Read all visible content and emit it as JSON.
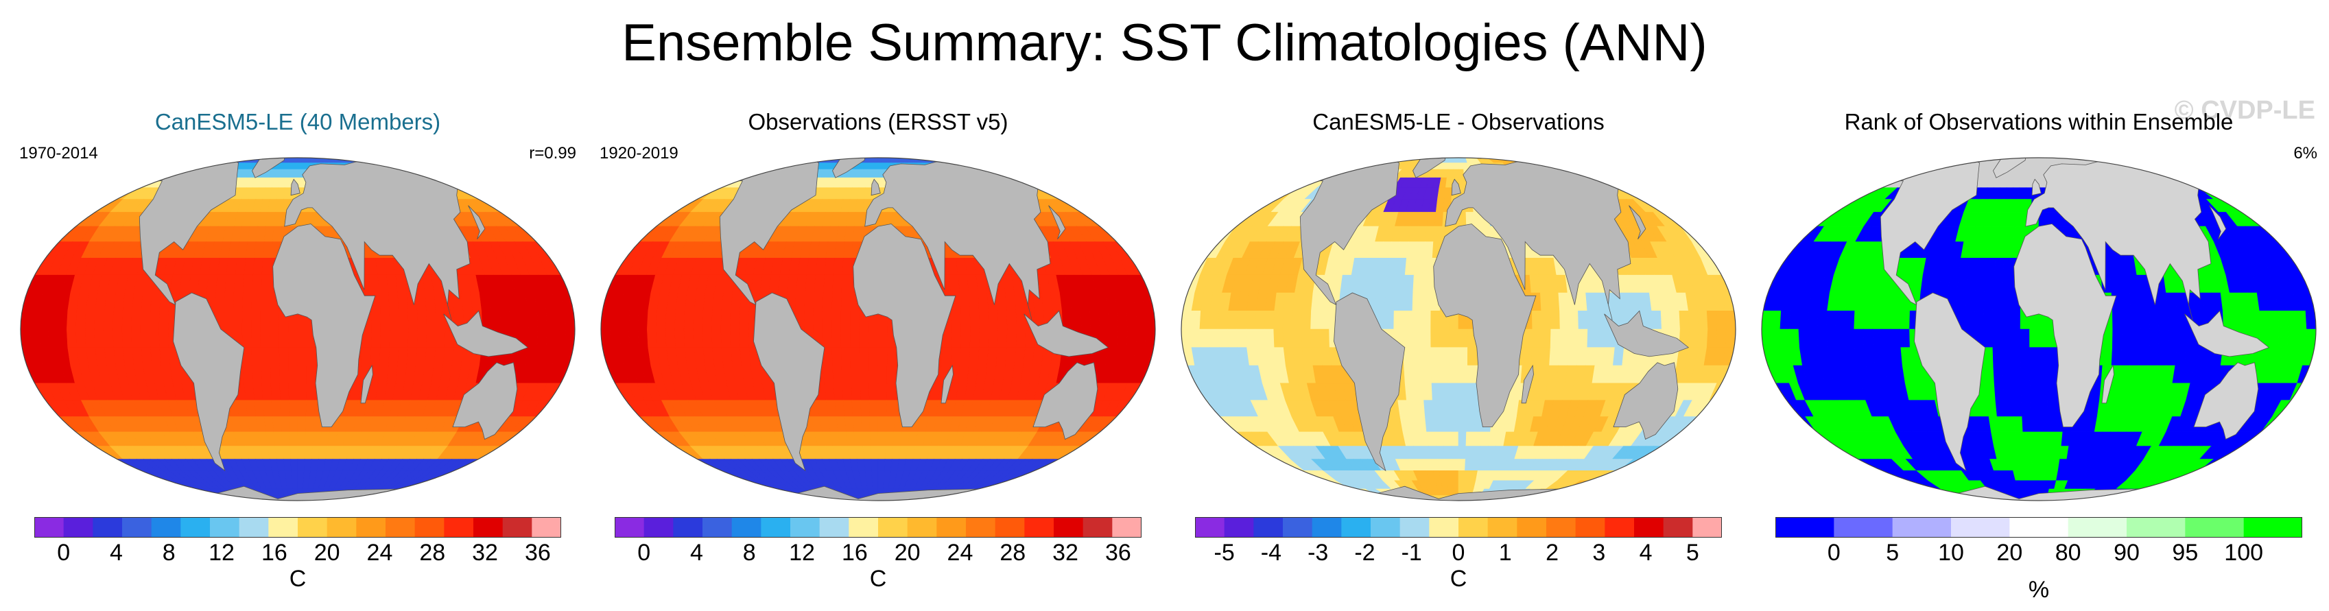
{
  "title": "Ensemble Summary: SST Climatologies (ANN)",
  "watermark": "© CVDP-LE",
  "panels": [
    {
      "title": "CanESM5-LE (40 Members)",
      "left": "1970-2014",
      "right": "r=0.99",
      "field": "sst",
      "colorbar": {
        "colors": [
          "#8a2be2",
          "#5a1fdc",
          "#2b3adc",
          "#3a62e0",
          "#1f87e8",
          "#2ab0f0",
          "#69c6f0",
          "#a8daf0",
          "#fff2a0",
          "#ffd24a",
          "#ffb92e",
          "#ff9a1a",
          "#ff7a12",
          "#ff5a0a",
          "#ff2a0a",
          "#e00000",
          "#cc2c2c",
          "#ffa8a8"
        ],
        "ticks": [
          "0",
          "4",
          "8",
          "12",
          "16",
          "20",
          "24",
          "28",
          "32",
          "36"
        ],
        "unit": "C"
      }
    },
    {
      "title": "Observations (ERSST v5)",
      "left": "1920-2019",
      "right": "",
      "field": "sst",
      "colorbar": {
        "colors": [
          "#8a2be2",
          "#5a1fdc",
          "#2b3adc",
          "#3a62e0",
          "#1f87e8",
          "#2ab0f0",
          "#69c6f0",
          "#a8daf0",
          "#fff2a0",
          "#ffd24a",
          "#ffb92e",
          "#ff9a1a",
          "#ff7a12",
          "#ff5a0a",
          "#ff2a0a",
          "#e00000",
          "#cc2c2c",
          "#ffa8a8"
        ],
        "ticks": [
          "0",
          "4",
          "8",
          "12",
          "16",
          "20",
          "24",
          "28",
          "32",
          "36"
        ],
        "unit": "C"
      }
    },
    {
      "title": "CanESM5-LE - Observations",
      "left": "",
      "right": "",
      "field": "diff",
      "colorbar": {
        "colors": [
          "#8a2be2",
          "#5a1fdc",
          "#2b3adc",
          "#3a62e0",
          "#1f87e8",
          "#2ab0f0",
          "#69c6f0",
          "#a8daf0",
          "#fff2a0",
          "#ffd24a",
          "#ffb92e",
          "#ff9a1a",
          "#ff7a12",
          "#ff5a0a",
          "#ff2a0a",
          "#e00000",
          "#cc2c2c",
          "#ffa8a8"
        ],
        "ticks": [
          "-5",
          "-4",
          "-3",
          "-2",
          "-1",
          "0",
          "1",
          "2",
          "3",
          "4",
          "5"
        ],
        "unit": "C"
      }
    },
    {
      "title": "Rank of Observations within Ensemble",
      "left": "",
      "right": "6%",
      "field": "rank",
      "colorbar": {
        "colors": [
          "#0000ff",
          "#6a6aff",
          "#b0b0ff",
          "#e0e0ff",
          "#ffffff",
          "#e0ffe0",
          "#b0ffb0",
          "#6aff6a",
          "#00ff00"
        ],
        "ticks": [
          "0",
          "5",
          "10",
          "20",
          "80",
          "90",
          "95",
          "100"
        ],
        "unit": "%"
      }
    }
  ]
}
